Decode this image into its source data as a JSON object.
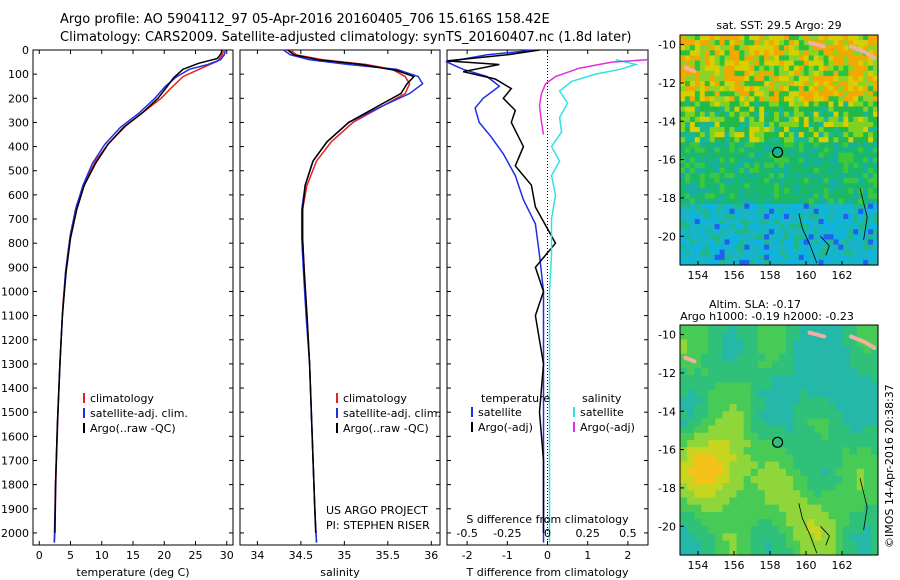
{
  "header": {
    "line1": "Argo profile: AO 5904112_97 05-Apr-2016 20160405_706 15.616S 158.42E",
    "line2": "Climatology: CARS2009. Satellite-adjusted climatology: synTS_20160407.nc (1.8d later)"
  },
  "colors": {
    "climatology": "#e8211d",
    "satellite": "#1f2fe6",
    "argo": "#000000",
    "sat_salinity": "#2fe3e3",
    "argo_salinity": "#e22ee0"
  },
  "chart_data": [
    {
      "type": "line",
      "name": "temperature",
      "xlabel": "temperature (deg C)",
      "xlim": [
        -1,
        31
      ],
      "ylim": [
        2050,
        0
      ],
      "xticks": [
        0,
        5,
        10,
        15,
        20,
        25,
        30
      ],
      "yticks": [
        0,
        100,
        200,
        300,
        400,
        500,
        600,
        700,
        800,
        900,
        1000,
        1100,
        1200,
        1300,
        1400,
        1500,
        1600,
        1700,
        1800,
        1900,
        2000
      ],
      "legend": [
        "climatology",
        "satellite-adj. clim.",
        "Argo(..raw -QC)"
      ],
      "series": [
        {
          "name": "climatology",
          "color": "#e8211d",
          "points": [
            [
              29.5,
              0
            ],
            [
              29.3,
              20
            ],
            [
              28.6,
              45
            ],
            [
              26,
              75
            ],
            [
              23,
              110
            ],
            [
              21,
              160
            ],
            [
              19.5,
              200
            ],
            [
              17,
              250
            ],
            [
              14,
              310
            ],
            [
              11,
              390
            ],
            [
              9,
              460
            ],
            [
              7.5,
              540
            ],
            [
              6,
              640
            ],
            [
              5,
              760
            ],
            [
              4.3,
              900
            ],
            [
              3.8,
              1050
            ],
            [
              3.4,
              1250
            ],
            [
              3,
              1500
            ],
            [
              2.7,
              1750
            ],
            [
              2.5,
              2000
            ],
            [
              2.4,
              2040
            ]
          ]
        },
        {
          "name": "satellite-adj. clim.",
          "color": "#1f2fe6",
          "points": [
            [
              29.8,
              0
            ],
            [
              29.6,
              20
            ],
            [
              29,
              40
            ],
            [
              27,
              60
            ],
            [
              24,
              80
            ],
            [
              22,
              110
            ],
            [
              20.2,
              150
            ],
            [
              18.5,
              200
            ],
            [
              16,
              260
            ],
            [
              13,
              320
            ],
            [
              10.5,
              390
            ],
            [
              8.5,
              470
            ],
            [
              7,
              560
            ],
            [
              5.8,
              660
            ],
            [
              4.9,
              780
            ],
            [
              4.2,
              920
            ],
            [
              3.7,
              1100
            ],
            [
              3.3,
              1300
            ],
            [
              2.9,
              1550
            ],
            [
              2.6,
              1800
            ],
            [
              2.4,
              2040
            ]
          ]
        },
        {
          "name": "Argo(..raw -QC)",
          "color": "#000000",
          "points": [
            [
              29.2,
              0
            ],
            [
              29.1,
              15
            ],
            [
              28.5,
              35
            ],
            [
              25.5,
              55
            ],
            [
              23,
              80
            ],
            [
              21.5,
              115
            ],
            [
              20.5,
              150
            ],
            [
              19,
              200
            ],
            [
              16.5,
              260
            ],
            [
              13.5,
              320
            ],
            [
              11,
              390
            ],
            [
              9,
              470
            ],
            [
              7.2,
              560
            ],
            [
              6,
              660
            ],
            [
              5,
              780
            ],
            [
              4.3,
              920
            ],
            [
              3.7,
              1100
            ],
            [
              3.3,
              1300
            ],
            [
              2.9,
              1550
            ],
            [
              2.6,
              1800
            ],
            [
              2.5,
              2000
            ]
          ]
        }
      ]
    },
    {
      "type": "line",
      "name": "salinity",
      "xlabel": "salinity",
      "xlim": [
        33.8,
        36.1
      ],
      "ylim": [
        2050,
        0
      ],
      "xticks": [
        34,
        34.5,
        35,
        35.5,
        36
      ],
      "legend": [
        "climatology",
        "satellite-adj. clim.",
        "Argo(..raw -QC)"
      ],
      "footer": [
        "US ARGO PROJECT",
        "PI: STEPHEN RISER"
      ],
      "series": [
        {
          "name": "climatology",
          "color": "#e8211d",
          "points": [
            [
              34.38,
              0
            ],
            [
              34.45,
              20
            ],
            [
              34.75,
              40
            ],
            [
              35.25,
              60
            ],
            [
              35.55,
              80
            ],
            [
              35.7,
              110
            ],
            [
              35.75,
              140
            ],
            [
              35.7,
              180
            ],
            [
              35.45,
              230
            ],
            [
              35.1,
              300
            ],
            [
              34.85,
              380
            ],
            [
              34.68,
              460
            ],
            [
              34.57,
              560
            ],
            [
              34.52,
              660
            ],
            [
              34.52,
              780
            ],
            [
              34.54,
              920
            ],
            [
              34.57,
              1100
            ],
            [
              34.6,
              1300
            ],
            [
              34.63,
              1600
            ],
            [
              34.66,
              1900
            ],
            [
              34.68,
              2040
            ]
          ]
        },
        {
          "name": "satellite-adj. clim.",
          "color": "#1f2fe6",
          "points": [
            [
              34.3,
              0
            ],
            [
              34.38,
              20
            ],
            [
              34.6,
              40
            ],
            [
              35.05,
              60
            ],
            [
              35.6,
              80
            ],
            [
              35.85,
              110
            ],
            [
              35.9,
              140
            ],
            [
              35.75,
              180
            ],
            [
              35.45,
              230
            ],
            [
              35.05,
              300
            ],
            [
              34.8,
              380
            ],
            [
              34.64,
              460
            ],
            [
              34.55,
              560
            ],
            [
              34.51,
              660
            ],
            [
              34.51,
              780
            ],
            [
              34.53,
              920
            ],
            [
              34.56,
              1100
            ],
            [
              34.6,
              1300
            ],
            [
              34.63,
              1600
            ],
            [
              34.66,
              1900
            ],
            [
              34.68,
              2040
            ]
          ]
        },
        {
          "name": "Argo(..raw -QC)",
          "color": "#000000",
          "points": [
            [
              34.35,
              0
            ],
            [
              34.42,
              20
            ],
            [
              34.7,
              40
            ],
            [
              35.2,
              60
            ],
            [
              35.6,
              85
            ],
            [
              35.8,
              110
            ],
            [
              35.72,
              140
            ],
            [
              35.65,
              180
            ],
            [
              35.4,
              230
            ],
            [
              35.05,
              300
            ],
            [
              34.8,
              380
            ],
            [
              34.64,
              460
            ],
            [
              34.55,
              560
            ],
            [
              34.52,
              660
            ],
            [
              34.52,
              780
            ],
            [
              34.54,
              920
            ],
            [
              34.57,
              1100
            ],
            [
              34.6,
              1300
            ],
            [
              34.63,
              1600
            ],
            [
              34.66,
              1900
            ],
            [
              34.67,
              2000
            ]
          ]
        }
      ]
    },
    {
      "type": "line",
      "name": "difference",
      "xlabel": "T difference from climatology",
      "xlabel_top": "S difference from climatology",
      "xlim": [
        -2.5,
        2.5
      ],
      "ylim": [
        2050,
        0
      ],
      "xticks": [
        -2,
        -1,
        0,
        1,
        2
      ],
      "s_ticks": [
        -0.5,
        -0.25,
        0,
        0.25,
        0.5
      ],
      "legend_left_title": "temperature",
      "legend_right_title": "salinity",
      "legend": [
        "satellite",
        "Argo(-adj)",
        "satellite",
        "Argo(-adj)"
      ],
      "series": [
        {
          "name": "satellite",
          "color": "#1f2fe6",
          "points": [
            [
              -0.3,
              0
            ],
            [
              -1.5,
              20
            ],
            [
              -2.5,
              50
            ],
            [
              -2.1,
              80
            ],
            [
              -1.5,
              110
            ],
            [
              -1.2,
              150
            ],
            [
              -1.6,
              200
            ],
            [
              -1.8,
              240
            ],
            [
              -1.7,
              300
            ],
            [
              -1.4,
              360
            ],
            [
              -1.1,
              430
            ],
            [
              -0.8,
              520
            ],
            [
              -0.6,
              620
            ],
            [
              -0.3,
              720
            ],
            [
              -0.2,
              850
            ],
            [
              -0.1,
              1000
            ],
            [
              -0.1,
              1200
            ],
            [
              -0.1,
              1500
            ],
            [
              -0.1,
              1800
            ],
            [
              -0.1,
              2040
            ]
          ]
        },
        {
          "name": "Argo(-adj)",
          "color": "#000000",
          "points": [
            [
              -0.2,
              0
            ],
            [
              -1.0,
              20
            ],
            [
              -2.5,
              45
            ],
            [
              -1.2,
              60
            ],
            [
              -2.1,
              90
            ],
            [
              -1.3,
              120
            ],
            [
              -0.9,
              160
            ],
            [
              -1.1,
              200
            ],
            [
              -0.8,
              250
            ],
            [
              -0.9,
              300
            ],
            [
              -0.6,
              400
            ],
            [
              -0.8,
              480
            ],
            [
              -0.4,
              560
            ],
            [
              -0.3,
              650
            ],
            [
              0.2,
              800
            ],
            [
              -0.3,
              900
            ],
            [
              -0.1,
              1000
            ],
            [
              -0.3,
              1100
            ],
            [
              -0.1,
              1300
            ],
            [
              -0.2,
              1500
            ],
            [
              -0.1,
              1700
            ],
            [
              -0.1,
              2000
            ]
          ]
        },
        {
          "name": "satellite",
          "color": "#2fe3e3",
          "points": [
            [
              1.7,
              40
            ],
            [
              2.2,
              60
            ],
            [
              1.8,
              80
            ],
            [
              1.2,
              100
            ],
            [
              0.6,
              130
            ],
            [
              0.3,
              170
            ],
            [
              0.5,
              220
            ],
            [
              0.3,
              280
            ],
            [
              0.35,
              340
            ],
            [
              0.1,
              400
            ],
            [
              0.3,
              460
            ],
            [
              0.1,
              520
            ],
            [
              0.2,
              600
            ],
            [
              0.1,
              700
            ],
            [
              0.1,
              850
            ],
            [
              0.05,
              1000
            ],
            [
              0.05,
              1300
            ],
            [
              0.05,
              1600
            ],
            [
              0.05,
              2040
            ]
          ]
        },
        {
          "name": "Argo(-adj)",
          "color": "#e22ee0",
          "points": [
            [
              2.5,
              40
            ],
            [
              1.6,
              50
            ],
            [
              0.8,
              75
            ],
            [
              0.2,
              110
            ],
            [
              -0.05,
              140
            ],
            [
              -0.15,
              180
            ],
            [
              -0.2,
              230
            ],
            [
              -0.15,
              300
            ],
            [
              -0.1,
              350
            ]
          ]
        }
      ]
    },
    {
      "type": "heatmap",
      "name": "sst-map",
      "title": "sat. SST: 29.5 Argo: 29",
      "xlim": [
        153,
        164
      ],
      "ylim": [
        -21.5,
        -9.5
      ],
      "xticks": [
        154,
        156,
        158,
        160,
        162
      ],
      "yticks": [
        -10,
        -12,
        -14,
        -16,
        -18,
        -20
      ],
      "marker": {
        "lon": 158.42,
        "lat": -15.62
      }
    },
    {
      "type": "heatmap",
      "name": "sla-map",
      "title": "Altim. SLA: -0.17",
      "subtitle": "Argo h1000: -0.19 h2000: -0.23",
      "xlim": [
        153,
        164
      ],
      "ylim": [
        -21.5,
        -9.5
      ],
      "xticks": [
        154,
        156,
        158,
        160,
        162
      ],
      "yticks": [
        -10,
        -12,
        -14,
        -16,
        -18,
        -20
      ],
      "marker": {
        "lon": 158.42,
        "lat": -15.62
      }
    }
  ],
  "side_stamp": "©IMOS 14-Apr-2016 20:38:37"
}
